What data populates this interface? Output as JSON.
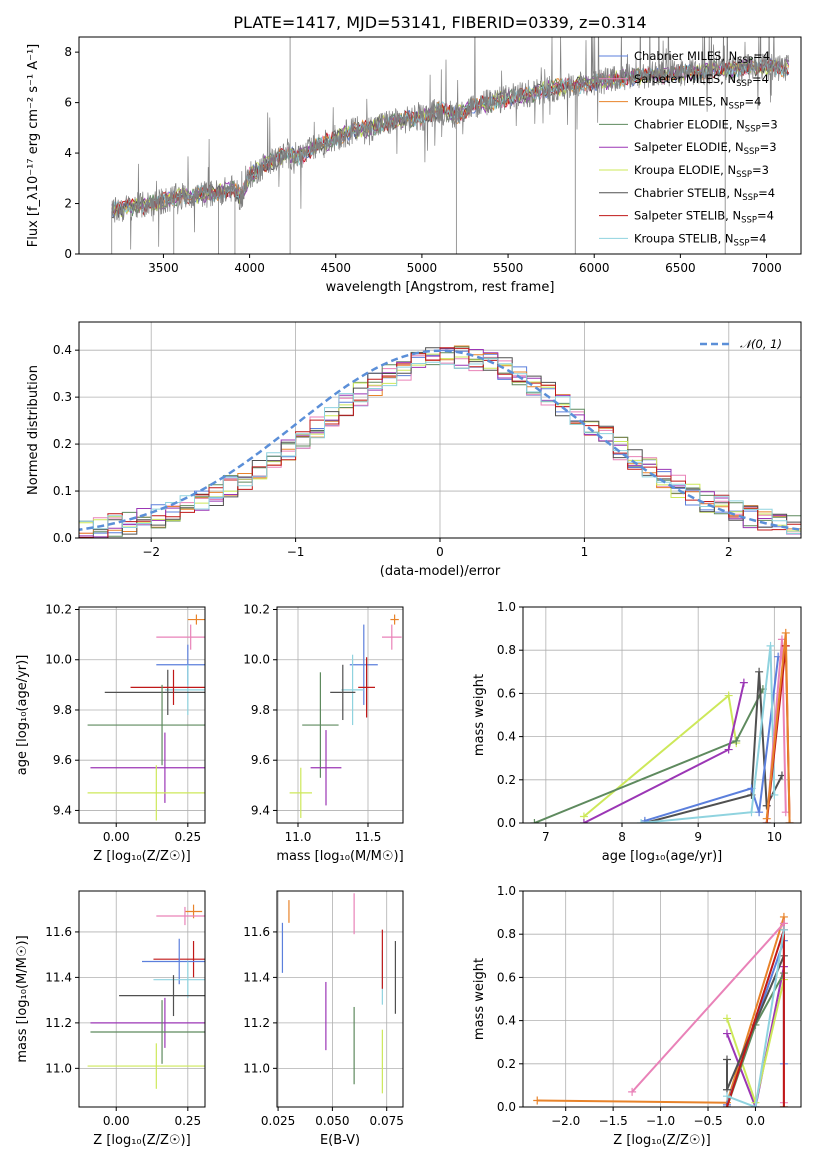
{
  "figure": {
    "title": "PLATE=1417, MJD=53141, FIBERID=0339, z=0.314"
  },
  "colors": {
    "chabrier_miles": "#5b7fdc",
    "salpeter_miles": "#e982b8",
    "kroupa_miles": "#e8832a",
    "chabrier_elodie": "#5e8a5e",
    "salpeter_elodie": "#9b36b5",
    "kroupa_elodie": "#cde85a",
    "chabrier_stelib": "#505050",
    "salpeter_stelib": "#c01818",
    "kroupa_stelib": "#8fd3df",
    "data": "#808080",
    "gauss": "#5b8fd8"
  },
  "chart_data": [
    {
      "id": "spectrum",
      "type": "line",
      "xlabel": "wavelength [Angstrom, rest frame]",
      "ylabel": "Flux [f_λ10⁻¹⁷ erg cm⁻² s⁻¹ A⁻¹]",
      "xlim": [
        3010,
        7200
      ],
      "ylim": [
        0,
        8.6
      ],
      "xticks": [
        3500,
        4000,
        4500,
        5000,
        5500,
        6000,
        6500,
        7000
      ],
      "yticks": [
        0,
        2,
        4,
        6,
        8
      ],
      "grid": false,
      "legend_position": "top-right",
      "legend": [
        {
          "label": "Chabrier MILES, N",
          "sub": "SSP",
          "suffix": "=4",
          "color_key": "chabrier_miles"
        },
        {
          "label": "Salpeter MILES, N",
          "sub": "SSP",
          "suffix": "=4",
          "color_key": "salpeter_miles"
        },
        {
          "label": "Kroupa MILES, N",
          "sub": "SSP",
          "suffix": "=4",
          "color_key": "kroupa_miles"
        },
        {
          "label": "Chabrier ELODIE, N",
          "sub": "SSP",
          "suffix": "=3",
          "color_key": "chabrier_elodie"
        },
        {
          "label": "Salpeter ELODIE, N",
          "sub": "SSP",
          "suffix": "=3",
          "color_key": "salpeter_elodie"
        },
        {
          "label": "Kroupa ELODIE, N",
          "sub": "SSP",
          "suffix": "=3",
          "color_key": "kroupa_elodie"
        },
        {
          "label": "Chabrier STELIB, N",
          "sub": "SSP",
          "suffix": "=4",
          "color_key": "chabrier_stelib"
        },
        {
          "label": "Salpeter STELIB, N",
          "sub": "SSP",
          "suffix": "=4",
          "color_key": "salpeter_stelib"
        },
        {
          "label": "Kroupa STELIB, N",
          "sub": "SSP",
          "suffix": "=4",
          "color_key": "kroupa_stelib"
        }
      ],
      "continuum": [
        [
          3200,
          1.7
        ],
        [
          3300,
          1.85
        ],
        [
          3400,
          1.95
        ],
        [
          3500,
          2.1
        ],
        [
          3600,
          2.3
        ],
        [
          3700,
          2.35
        ],
        [
          3800,
          2.4
        ],
        [
          3900,
          2.6
        ],
        [
          3950,
          2.2
        ],
        [
          4000,
          3.1
        ],
        [
          4100,
          3.6
        ],
        [
          4200,
          3.9
        ],
        [
          4300,
          3.9
        ],
        [
          4400,
          4.3
        ],
        [
          4500,
          4.6
        ],
        [
          4600,
          4.9
        ],
        [
          4700,
          5.0
        ],
        [
          4800,
          5.2
        ],
        [
          4900,
          5.3
        ],
        [
          5000,
          5.4
        ],
        [
          5100,
          5.7
        ],
        [
          5200,
          5.5
        ],
        [
          5300,
          5.9
        ],
        [
          5400,
          6.0
        ],
        [
          5500,
          6.2
        ],
        [
          5600,
          6.3
        ],
        [
          5700,
          6.5
        ],
        [
          5800,
          6.6
        ],
        [
          5900,
          6.7
        ],
        [
          6000,
          6.8
        ],
        [
          6100,
          6.9
        ],
        [
          6200,
          7.0
        ],
        [
          6300,
          7.1
        ],
        [
          6400,
          7.1
        ],
        [
          6500,
          7.2
        ],
        [
          6600,
          7.2
        ],
        [
          6700,
          7.3
        ],
        [
          6800,
          7.3
        ],
        [
          6900,
          7.4
        ],
        [
          7000,
          7.4
        ],
        [
          7100,
          7.4
        ]
      ]
    },
    {
      "id": "residuals",
      "type": "line",
      "xlabel": "(data-model)/error",
      "ylabel": "Normed distribution",
      "xlim": [
        -2.5,
        2.5
      ],
      "ylim": [
        0,
        0.46
      ],
      "xticks": [
        -2,
        -1,
        0,
        1,
        2
      ],
      "yticks": [
        0.0,
        0.1,
        0.2,
        0.3,
        0.4
      ],
      "grid": true,
      "legend_position": "top-right",
      "legend": [
        {
          "label": "𝒩(0, 1)",
          "style": "dashed"
        }
      ],
      "gaussian": {
        "mean": 0,
        "sigma": 1
      }
    },
    {
      "id": "age_vs_Z",
      "type": "scatter",
      "xlabel": "Z [log₁₀(Z/Z☉)]",
      "ylabel": "age  [log₁₀(age/yr)]",
      "xlim": [
        -0.13,
        0.31
      ],
      "ylim": [
        9.35,
        10.21
      ],
      "xticks": [
        0.0,
        0.25
      ],
      "yticks": [
        9.4,
        9.6,
        9.8,
        10.0,
        10.2
      ],
      "grid": true,
      "errorbars": [
        {
          "k": "kroupa_miles",
          "x": 0.28,
          "xerr": 0.03,
          "y": 10.16,
          "yerr": 0.02
        },
        {
          "k": "salpeter_miles",
          "x": 0.26,
          "xerr": 0.12,
          "y": 10.09,
          "yerr": 0.05
        },
        {
          "k": "chabrier_miles",
          "x": 0.25,
          "xerr": 0.11,
          "y": 9.98,
          "yerr": 0.08
        },
        {
          "k": "kroupa_stelib",
          "x": 0.25,
          "xerr": 0.08,
          "y": 9.88,
          "yerr": 0.1
        },
        {
          "k": "chabrier_stelib",
          "x": 0.18,
          "xerr": 0.22,
          "y": 9.87,
          "yerr": 0.09
        },
        {
          "k": "salpeter_stelib",
          "x": 0.2,
          "xerr": 0.15,
          "y": 9.89,
          "yerr": 0.07
        },
        {
          "k": "chabrier_elodie",
          "x": 0.16,
          "xerr": 0.26,
          "y": 9.74,
          "yerr": 0.16
        },
        {
          "k": "salpeter_elodie",
          "x": 0.17,
          "xerr": 0.26,
          "y": 9.57,
          "yerr": 0.14
        },
        {
          "k": "kroupa_elodie",
          "x": 0.14,
          "xerr": 0.24,
          "y": 9.47,
          "yerr": 0.11
        }
      ]
    },
    {
      "id": "age_vs_mass",
      "type": "scatter",
      "xlabel": "mass [log₁₀(M/M☉)]",
      "ylabel": "",
      "xlim": [
        10.85,
        11.75
      ],
      "ylim": [
        9.35,
        10.21
      ],
      "xticks": [
        11.0,
        11.5
      ],
      "yticks": [
        9.4,
        9.6,
        9.8,
        10.0,
        10.2
      ],
      "grid": true,
      "errorbars": [
        {
          "k": "kroupa_miles",
          "x": 11.69,
          "xerr": 0.03,
          "y": 10.16,
          "yerr": 0.02
        },
        {
          "k": "salpeter_miles",
          "x": 11.67,
          "xerr": 0.07,
          "y": 10.09,
          "yerr": 0.05
        },
        {
          "k": "chabrier_miles",
          "x": 11.47,
          "xerr": 0.1,
          "y": 9.98,
          "yerr": 0.16
        },
        {
          "k": "kroupa_stelib",
          "x": 11.39,
          "xerr": 0.08,
          "y": 9.88,
          "yerr": 0.14
        },
        {
          "k": "chabrier_stelib",
          "x": 11.32,
          "xerr": 0.09,
          "y": 9.87,
          "yerr": 0.11
        },
        {
          "k": "salpeter_stelib",
          "x": 11.49,
          "xerr": 0.06,
          "y": 9.89,
          "yerr": 0.12
        },
        {
          "k": "chabrier_elodie",
          "x": 11.16,
          "xerr": 0.13,
          "y": 9.74,
          "yerr": 0.21
        },
        {
          "k": "salpeter_elodie",
          "x": 11.2,
          "xerr": 0.11,
          "y": 9.57,
          "yerr": 0.15
        },
        {
          "k": "kroupa_elodie",
          "x": 11.02,
          "xerr": 0.08,
          "y": 9.47,
          "yerr": 0.1
        }
      ]
    },
    {
      "id": "weight_vs_age",
      "type": "line",
      "xlabel": "age  [log₁₀(age/yr)]",
      "ylabel": "mass weight",
      "xlim": [
        6.7,
        10.35
      ],
      "ylim": [
        0,
        1.0
      ],
      "xticks": [
        7,
        8,
        9,
        10
      ],
      "yticks": [
        0.0,
        0.2,
        0.4,
        0.6,
        0.8,
        1.0
      ],
      "grid": true,
      "series": [
        {
          "k": "kroupa_elodie",
          "points": [
            [
              7.5,
              0.03
            ],
            [
              9.4,
              0.59
            ],
            [
              9.5,
              0.37
            ]
          ]
        },
        {
          "k": "chabrier_elodie",
          "points": [
            [
              6.85,
              0.0
            ],
            [
              9.5,
              0.38
            ],
            [
              9.85,
              0.62
            ]
          ]
        },
        {
          "k": "salpeter_elodie",
          "points": [
            [
              7.5,
              0.0
            ],
            [
              9.4,
              0.34
            ],
            [
              9.6,
              0.65
            ]
          ]
        },
        {
          "k": "chabrier_stelib",
          "points": [
            [
              8.3,
              0.0
            ],
            [
              9.7,
              0.13
            ],
            [
              9.8,
              0.7
            ],
            [
              9.9,
              0.08
            ],
            [
              10.1,
              0.22
            ]
          ]
        },
        {
          "k": "chabrier_miles",
          "points": [
            [
              8.3,
              0.01
            ],
            [
              9.7,
              0.16
            ],
            [
              9.8,
              0.05
            ],
            [
              10.05,
              0.77
            ]
          ]
        },
        {
          "k": "kroupa_stelib",
          "points": [
            [
              8.25,
              0.0
            ],
            [
              9.7,
              0.05
            ],
            [
              9.95,
              0.82
            ],
            [
              10.0,
              0.13
            ]
          ]
        },
        {
          "k": "salpeter_miles",
          "points": [
            [
              9.9,
              0.0
            ],
            [
              10.1,
              0.85
            ],
            [
              10.15,
              0.05
            ]
          ]
        },
        {
          "k": "salpeter_stelib",
          "points": [
            [
              9.9,
              0.0
            ],
            [
              10.15,
              0.82
            ],
            [
              10.2,
              0.0
            ]
          ]
        },
        {
          "k": "kroupa_miles",
          "points": [
            [
              9.9,
              0.02
            ],
            [
              10.15,
              0.88
            ],
            [
              10.2,
              0.0
            ]
          ]
        }
      ]
    },
    {
      "id": "mass_vs_Z",
      "type": "scatter",
      "xlabel": "Z [log₁₀(Z/Z☉)]",
      "ylabel": "mass [log₁₀(M/M☉)]",
      "xlim": [
        -0.13,
        0.31
      ],
      "ylim": [
        10.83,
        11.78
      ],
      "xticks": [
        0.0,
        0.25
      ],
      "yticks": [
        11.0,
        11.2,
        11.4,
        11.6
      ],
      "grid": true,
      "errorbars": [
        {
          "k": "kroupa_miles",
          "x": 0.27,
          "xerr": 0.03,
          "y": 11.69,
          "yerr": 0.03
        },
        {
          "k": "salpeter_miles",
          "x": 0.24,
          "xerr": 0.1,
          "y": 11.67,
          "yerr": 0.04
        },
        {
          "k": "salpeter_stelib",
          "x": 0.27,
          "xerr": 0.14,
          "y": 11.48,
          "yerr": 0.08
        },
        {
          "k": "chabrier_miles",
          "x": 0.22,
          "xerr": 0.13,
          "y": 11.47,
          "yerr": 0.1
        },
        {
          "k": "kroupa_stelib",
          "x": 0.25,
          "xerr": 0.12,
          "y": 11.39,
          "yerr": 0.08
        },
        {
          "k": "chabrier_stelib",
          "x": 0.2,
          "xerr": 0.19,
          "y": 11.32,
          "yerr": 0.09
        },
        {
          "k": "salpeter_elodie",
          "x": 0.17,
          "xerr": 0.26,
          "y": 11.2,
          "yerr": 0.11
        },
        {
          "k": "chabrier_elodie",
          "x": 0.16,
          "xerr": 0.25,
          "y": 11.16,
          "yerr": 0.14
        },
        {
          "k": "kroupa_elodie",
          "x": 0.14,
          "xerr": 0.24,
          "y": 11.01,
          "yerr": 0.1
        }
      ]
    },
    {
      "id": "mass_vs_ebv",
      "type": "scatter",
      "xlabel": "E(B-V)",
      "ylabel": "",
      "xlim": [
        0.0245,
        0.0825
      ],
      "ylim": [
        10.83,
        11.78
      ],
      "xticks": [
        0.025,
        0.05,
        0.075
      ],
      "yticks": [
        11.0,
        11.2,
        11.4,
        11.6
      ],
      "grid": true,
      "errorbars": [
        {
          "k": "chabrier_miles",
          "x": 0.027,
          "xerr": 0,
          "y": 11.53,
          "yerr": 0.11
        },
        {
          "k": "kroupa_miles",
          "x": 0.03,
          "xerr": 0,
          "y": 11.69,
          "yerr": 0.05
        },
        {
          "k": "salpeter_elodie",
          "x": 0.047,
          "xerr": 0,
          "y": 11.23,
          "yerr": 0.15
        },
        {
          "k": "chabrier_elodie",
          "x": 0.06,
          "xerr": 0,
          "y": 11.1,
          "yerr": 0.17
        },
        {
          "k": "salpeter_miles",
          "x": 0.06,
          "xerr": 0,
          "y": 11.68,
          "yerr": 0.09
        },
        {
          "k": "kroupa_stelib",
          "x": 0.073,
          "xerr": 0,
          "y": 11.4,
          "yerr": 0.12
        },
        {
          "k": "salpeter_stelib",
          "x": 0.073,
          "xerr": 0,
          "y": 11.48,
          "yerr": 0.13
        },
        {
          "k": "kroupa_elodie",
          "x": 0.073,
          "xerr": 0,
          "y": 11.03,
          "yerr": 0.14
        },
        {
          "k": "chabrier_stelib",
          "x": 0.079,
          "xerr": 0,
          "y": 11.4,
          "yerr": 0.16
        }
      ]
    },
    {
      "id": "weight_vs_Z",
      "type": "line",
      "xlabel": "Z [log₁₀(Z/Z☉)]",
      "ylabel": "mass weight",
      "xlim": [
        -2.45,
        0.48
      ],
      "ylim": [
        0,
        1.0
      ],
      "xticks": [
        -2.0,
        -1.5,
        -1.0,
        -0.5,
        0.0
      ],
      "yticks": [
        0.0,
        0.2,
        0.4,
        0.6,
        0.8,
        1.0
      ],
      "grid": true,
      "series": [
        {
          "k": "kroupa_miles",
          "points": [
            [
              -2.3,
              0.03
            ],
            [
              -0.3,
              0.02
            ],
            [
              0.3,
              0.88
            ],
            [
              0.3,
              0.0
            ]
          ]
        },
        {
          "k": "salpeter_miles",
          "points": [
            [
              -1.3,
              0.07
            ],
            [
              0.3,
              0.85
            ],
            [
              0.3,
              0.02
            ]
          ]
        },
        {
          "k": "chabrier_miles",
          "points": [
            [
              -0.3,
              0.01
            ],
            [
              0.3,
              0.77
            ],
            [
              0.3,
              0.2
            ]
          ]
        },
        {
          "k": "salpeter_elodie",
          "points": [
            [
              -0.3,
              0.34
            ],
            [
              0.0,
              0.0
            ],
            [
              0.3,
              0.65
            ]
          ]
        },
        {
          "k": "kroupa_elodie",
          "points": [
            [
              -0.3,
              0.41
            ],
            [
              0.0,
              0.02
            ],
            [
              0.3,
              0.59
            ]
          ]
        },
        {
          "k": "chabrier_elodie",
          "points": [
            [
              -0.3,
              0.0
            ],
            [
              0.0,
              0.38
            ],
            [
              0.3,
              0.62
            ]
          ]
        },
        {
          "k": "chabrier_stelib",
          "points": [
            [
              -0.3,
              0.22
            ],
            [
              -0.3,
              0.08
            ],
            [
              0.3,
              0.7
            ]
          ]
        },
        {
          "k": "salpeter_stelib",
          "points": [
            [
              -0.3,
              0.0
            ],
            [
              0.3,
              0.82
            ],
            [
              0.3,
              0.0
            ]
          ]
        },
        {
          "k": "kroupa_stelib",
          "points": [
            [
              -0.3,
              0.05
            ],
            [
              0.0,
              0.0
            ],
            [
              0.3,
              0.82
            ]
          ]
        }
      ]
    }
  ]
}
